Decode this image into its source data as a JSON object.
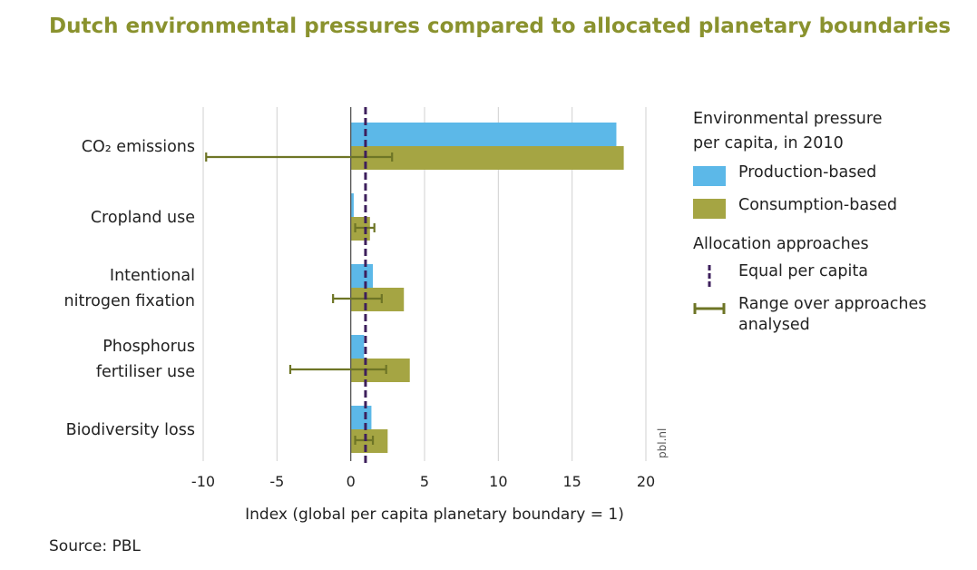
{
  "title": "Dutch environmental pressures compared to allocated planetary boundaries",
  "source": "Source: PBL",
  "watermark": "pbl.nl",
  "colors": {
    "title": "#8a922e",
    "production": "#5cb8e8",
    "consumption": "#a5a543",
    "range": "#6e7526",
    "equal": "#3d1f5c"
  },
  "legend": {
    "heading1": "Environmental pressure",
    "heading2": "per capita, in 2010",
    "production_label": "Production-based",
    "consumption_label": "Consumption-based",
    "heading3": "Allocation approaches",
    "equal_label": "Equal per capita",
    "range_label1": "Range over approaches",
    "range_label2": "analysed"
  },
  "chart_data": {
    "type": "bar",
    "orientation": "horizontal",
    "categories": [
      [
        "CO₂ emissions"
      ],
      [
        "Cropland use"
      ],
      [
        "Intentional",
        "nitrogen fixation"
      ],
      [
        "Phosphorus",
        "fertiliser use"
      ],
      [
        "Biodiversity loss"
      ]
    ],
    "series": [
      {
        "name": "Production-based",
        "values": [
          18.0,
          0.2,
          1.5,
          0.9,
          1.4
        ]
      },
      {
        "name": "Consumption-based",
        "values": [
          18.5,
          1.3,
          3.6,
          4.0,
          2.5
        ]
      }
    ],
    "ranges": [
      [
        -9.8,
        2.8
      ],
      [
        0.3,
        1.6
      ],
      [
        -1.2,
        2.1
      ],
      [
        -4.1,
        2.4
      ],
      [
        0.3,
        1.5
      ]
    ],
    "equal_per_capita": 1,
    "xlabel": "Index (global per capita planetary boundary = 1)",
    "xlim": [
      -10,
      20
    ],
    "xticks": [
      -10,
      -5,
      0,
      5,
      10,
      15,
      20
    ],
    "xtick_labels": [
      "-10",
      "-5",
      "0",
      "5",
      "10",
      "15",
      "20"
    ],
    "grid": true
  }
}
